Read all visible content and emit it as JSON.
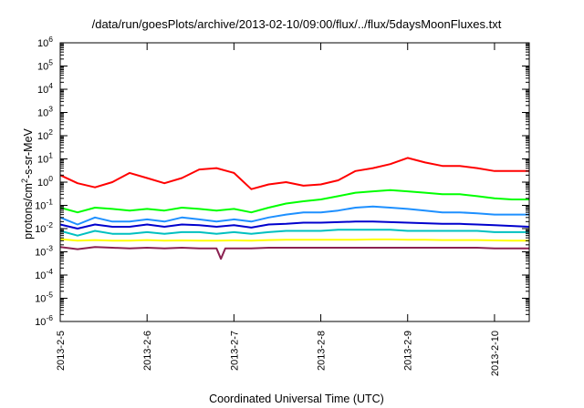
{
  "chart_data": {
    "type": "line",
    "title": "/data/run/goesPlots/archive/2013-02-10/09:00/flux/../flux/5daysMoonFluxes.txt",
    "xlabel": "Coordinated Universal Time (UTC)",
    "ylabel_base": "protons/cm",
    "ylabel_sup": "2",
    "ylabel_rest": "-s-sr-MeV",
    "y_scale": "log",
    "ylim": [
      1e-06,
      1000000.0
    ],
    "xlim": [
      0,
      5.4
    ],
    "grid": false,
    "legend": "none",
    "y_ticks": [
      {
        "base": "10",
        "exp": "-6",
        "value": -6
      },
      {
        "base": "10",
        "exp": "-5",
        "value": -5
      },
      {
        "base": "10",
        "exp": "-4",
        "value": -4
      },
      {
        "base": "10",
        "exp": "-3",
        "value": -3
      },
      {
        "base": "10",
        "exp": "-2",
        "value": -2
      },
      {
        "base": "10",
        "exp": "-1",
        "value": -1
      },
      {
        "base": "10",
        "exp": "0",
        "value": 0
      },
      {
        "base": "10",
        "exp": "1",
        "value": 1
      },
      {
        "base": "10",
        "exp": "2",
        "value": 2
      },
      {
        "base": "10",
        "exp": "3",
        "value": 3
      },
      {
        "base": "10",
        "exp": "4",
        "value": 4
      },
      {
        "base": "10",
        "exp": "5",
        "value": 5
      },
      {
        "base": "10",
        "exp": "6",
        "value": 6
      }
    ],
    "x_ticks": [
      {
        "label": "2013-2-5",
        "value": 0
      },
      {
        "label": "2013-2-6",
        "value": 1
      },
      {
        "label": "2013-2-7",
        "value": 2
      },
      {
        "label": "2013-2-8",
        "value": 3
      },
      {
        "label": "2013-2-9",
        "value": 4
      },
      {
        "label": "2013-2-10",
        "value": 5
      }
    ],
    "series": [
      {
        "color": "#ff0000",
        "x": [
          0,
          0.2,
          0.4,
          0.6,
          0.8,
          1.0,
          1.2,
          1.4,
          1.6,
          1.8,
          2.0,
          2.2,
          2.4,
          2.6,
          2.8,
          3.0,
          3.2,
          3.4,
          3.6,
          3.8,
          4.0,
          4.2,
          4.4,
          4.6,
          4.8,
          5.0,
          5.2,
          5.4
        ],
        "y": [
          2.0,
          0.9,
          0.6,
          1.0,
          2.5,
          1.5,
          0.9,
          1.5,
          3.5,
          4.0,
          2.5,
          0.5,
          0.8,
          1.0,
          0.7,
          0.8,
          1.2,
          3.0,
          4.0,
          6.0,
          11.0,
          7.0,
          5.0,
          5.0,
          4.0,
          3.0,
          3.0,
          3.0
        ]
      },
      {
        "color": "#00ff00",
        "x": [
          0,
          0.2,
          0.4,
          0.6,
          0.8,
          1.0,
          1.2,
          1.4,
          1.6,
          1.8,
          2.0,
          2.2,
          2.4,
          2.6,
          2.8,
          3.0,
          3.2,
          3.4,
          3.6,
          3.8,
          4.0,
          4.2,
          4.4,
          4.6,
          4.8,
          5.0,
          5.2,
          5.4
        ],
        "y": [
          0.08,
          0.05,
          0.08,
          0.07,
          0.06,
          0.07,
          0.06,
          0.08,
          0.07,
          0.06,
          0.07,
          0.05,
          0.08,
          0.12,
          0.15,
          0.18,
          0.25,
          0.35,
          0.4,
          0.45,
          0.4,
          0.35,
          0.3,
          0.3,
          0.25,
          0.2,
          0.18,
          0.18
        ]
      },
      {
        "color": "#1e90ff",
        "x": [
          0,
          0.2,
          0.4,
          0.6,
          0.8,
          1.0,
          1.2,
          1.4,
          1.6,
          1.8,
          2.0,
          2.2,
          2.4,
          2.6,
          2.8,
          3.0,
          3.2,
          3.4,
          3.6,
          3.8,
          4.0,
          4.2,
          4.4,
          4.6,
          4.8,
          5.0,
          5.2,
          5.4
        ],
        "y": [
          0.03,
          0.015,
          0.03,
          0.02,
          0.02,
          0.025,
          0.02,
          0.03,
          0.025,
          0.02,
          0.025,
          0.02,
          0.03,
          0.04,
          0.05,
          0.05,
          0.06,
          0.08,
          0.09,
          0.08,
          0.07,
          0.06,
          0.05,
          0.05,
          0.045,
          0.04,
          0.04,
          0.04
        ]
      },
      {
        "color": "#0000cd",
        "x": [
          0,
          0.2,
          0.4,
          0.6,
          0.8,
          1.0,
          1.2,
          1.4,
          1.6,
          1.8,
          2.0,
          2.2,
          2.4,
          2.6,
          2.8,
          3.0,
          3.2,
          3.4,
          3.6,
          3.8,
          4.0,
          4.2,
          4.4,
          4.6,
          4.8,
          5.0,
          5.2,
          5.4
        ],
        "y": [
          0.015,
          0.01,
          0.015,
          0.012,
          0.012,
          0.015,
          0.012,
          0.015,
          0.014,
          0.012,
          0.014,
          0.011,
          0.015,
          0.016,
          0.018,
          0.018,
          0.019,
          0.02,
          0.02,
          0.019,
          0.018,
          0.017,
          0.016,
          0.016,
          0.015,
          0.014,
          0.013,
          0.012
        ]
      },
      {
        "color": "#00c0c0",
        "x": [
          0,
          0.2,
          0.4,
          0.6,
          0.8,
          1.0,
          1.2,
          1.4,
          1.6,
          1.8,
          2.0,
          2.2,
          2.4,
          2.6,
          2.8,
          3.0,
          3.2,
          3.4,
          3.6,
          3.8,
          4.0,
          4.2,
          4.4,
          4.6,
          4.8,
          5.0,
          5.2,
          5.4
        ],
        "y": [
          0.008,
          0.005,
          0.008,
          0.006,
          0.006,
          0.007,
          0.006,
          0.007,
          0.007,
          0.006,
          0.007,
          0.006,
          0.007,
          0.008,
          0.008,
          0.008,
          0.009,
          0.009,
          0.009,
          0.009,
          0.008,
          0.008,
          0.008,
          0.008,
          0.008,
          0.007,
          0.007,
          0.007
        ]
      },
      {
        "color": "#ffff00",
        "x": [
          0,
          0.2,
          0.4,
          0.6,
          0.8,
          1.0,
          1.2,
          1.4,
          1.6,
          1.8,
          2.0,
          2.2,
          2.4,
          2.6,
          2.8,
          3.0,
          3.2,
          3.4,
          3.6,
          3.8,
          4.0,
          4.2,
          4.4,
          4.6,
          4.8,
          5.0,
          5.2,
          5.4
        ],
        "y": [
          0.0035,
          0.003,
          0.0032,
          0.003,
          0.003,
          0.0032,
          0.003,
          0.0031,
          0.003,
          0.003,
          0.0031,
          0.003,
          0.0032,
          0.0033,
          0.0033,
          0.0033,
          0.0033,
          0.0033,
          0.0034,
          0.0034,
          0.0033,
          0.0033,
          0.0032,
          0.0032,
          0.0032,
          0.0031,
          0.003,
          0.003
        ]
      },
      {
        "color": "#8b2252",
        "x": [
          0,
          0.2,
          0.4,
          0.6,
          0.8,
          1.0,
          1.2,
          1.4,
          1.6,
          1.8,
          1.85,
          1.9,
          2.0,
          2.2,
          2.4,
          2.6,
          2.8,
          3.0,
          3.2,
          3.4,
          3.6,
          3.8,
          4.0,
          4.2,
          4.4,
          4.6,
          4.8,
          5.0,
          5.2,
          5.4
        ],
        "y": [
          0.0016,
          0.0013,
          0.0016,
          0.0015,
          0.0014,
          0.0015,
          0.0014,
          0.0015,
          0.0014,
          0.0014,
          0.0005,
          0.0014,
          0.0014,
          0.0014,
          0.0015,
          0.0015,
          0.0015,
          0.0015,
          0.0015,
          0.0015,
          0.0015,
          0.0015,
          0.0015,
          0.0015,
          0.0015,
          0.0015,
          0.0015,
          0.0014,
          0.0014,
          0.0014
        ]
      }
    ]
  }
}
